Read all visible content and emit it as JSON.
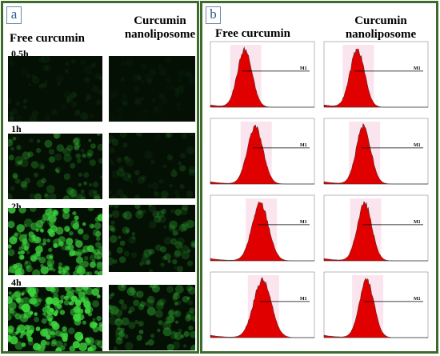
{
  "panel_a": {
    "letter": "a",
    "col_free": "Free curcumin",
    "col_nano_line1": "Curcumin",
    "col_nano_line2": "nanoliposome",
    "rows": [
      {
        "time": "0.5h",
        "free_intensity": 0.08,
        "nano_intensity": 0.05
      },
      {
        "time": "1h",
        "free_intensity": 0.3,
        "nano_intensity": 0.12
      },
      {
        "time": "2h",
        "free_intensity": 0.75,
        "nano_intensity": 0.25
      },
      {
        "time": "4h",
        "free_intensity": 0.9,
        "nano_intensity": 0.35
      }
    ]
  },
  "panel_b": {
    "letter": "b",
    "col_free": "Free curcumin",
    "col_nano_line1": "Curcumin",
    "col_nano_line2": "nanoliposome",
    "gate_label": "M1"
  },
  "colors": {
    "border": "#3d6b2c",
    "histogram_fill": "#e00000",
    "cell_fluorescence": "#3cd63c"
  }
}
